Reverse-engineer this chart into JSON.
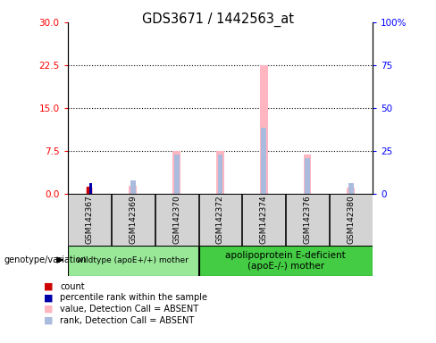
{
  "title": "GDS3671 / 1442563_at",
  "samples": [
    "GSM142367",
    "GSM142369",
    "GSM142370",
    "GSM142372",
    "GSM142374",
    "GSM142376",
    "GSM142380"
  ],
  "groups": [
    {
      "label": "wildtype (apoE+/+) mother",
      "indices": [
        0,
        1,
        2
      ]
    },
    {
      "label": "apolipoprotein E-deficient\n(apoE-/-) mother",
      "indices": [
        3,
        4,
        5,
        6
      ]
    }
  ],
  "bars": {
    "GSM142367": {
      "count": 1.2,
      "rank": 1.8,
      "value_absent": 1.1,
      "rank_absent": 0.8
    },
    "GSM142369": {
      "count": 0.0,
      "rank": 0.0,
      "value_absent": 1.4,
      "rank_absent": 2.3
    },
    "GSM142370": {
      "count": 0.0,
      "rank": 0.0,
      "value_absent": 7.5,
      "rank_absent": 6.8
    },
    "GSM142372": {
      "count": 0.0,
      "rank": 0.0,
      "value_absent": 7.5,
      "rank_absent": 6.8
    },
    "GSM142374": {
      "count": 0.0,
      "rank": 0.0,
      "value_absent": 22.5,
      "rank_absent": 11.5
    },
    "GSM142376": {
      "count": 0.0,
      "rank": 0.0,
      "value_absent": 6.8,
      "rank_absent": 6.2
    },
    "GSM142380": {
      "count": 0.0,
      "rank": 0.0,
      "value_absent": 1.1,
      "rank_absent": 1.8
    }
  },
  "ylim_left": [
    0,
    30
  ],
  "ylim_right": [
    0,
    100
  ],
  "yticks_left": [
    0,
    7.5,
    15,
    22.5,
    30
  ],
  "yticks_right": [
    0,
    25,
    50,
    75,
    100
  ],
  "colors": {
    "count": "#CC0000",
    "rank": "#0000AA",
    "value_absent": "#FFB6C1",
    "rank_absent": "#AABBDD",
    "group1_bg": "#98E898",
    "group2_bg": "#44CC44"
  },
  "legend_items": [
    {
      "color": "#CC0000",
      "label": "count"
    },
    {
      "color": "#0000AA",
      "label": "percentile rank within the sample"
    },
    {
      "color": "#FFB6C1",
      "label": "value, Detection Call = ABSENT"
    },
    {
      "color": "#AABBDD",
      "label": "rank, Detection Call = ABSENT"
    }
  ]
}
